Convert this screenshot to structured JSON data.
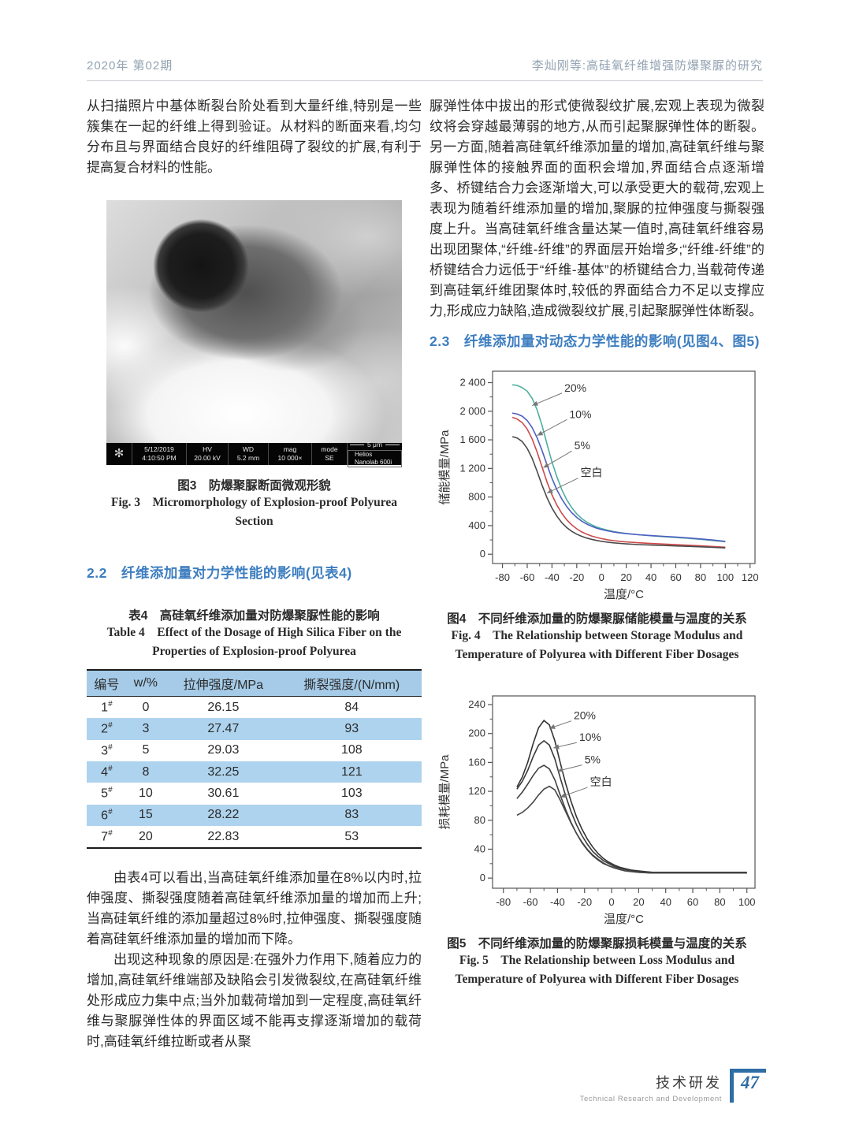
{
  "page": {
    "header_left": "2020年  第02期",
    "header_right": "李灿刚等:高硅氧纤维增强防爆聚脲的研究",
    "footer": {
      "cn": "技术研发",
      "en": "Technical Research and Development",
      "page_number": "47"
    }
  },
  "left_column": {
    "para1": "从扫描照片中基体断裂台阶处看到大量纤维,特别是一些簇集在一起的纤维上得到验证。从材料的断面来看,均匀分布且与界面结合良好的纤维阻碍了裂纹的扩展,有利于提高复合材料的性能。",
    "figure3": {
      "sem_bar": {
        "logo_icon": "✻",
        "cells": [
          {
            "l1": "5/12/2019",
            "l2": "4:10:50 PM"
          },
          {
            "l1": "HV",
            "l2": "20.00 kV"
          },
          {
            "l1": "WD",
            "l2": "5.2 mm"
          },
          {
            "l1": "mag",
            "l2": "10 000×"
          },
          {
            "l1": "mode",
            "l2": "SE"
          }
        ],
        "scale": "5 μm",
        "instrument": "Helios Nanolab 600i"
      },
      "caption_cn": "图3　防爆聚脲断面微观形貌",
      "caption_en1": "Fig. 3　Micromorphology of Explosion-proof Polyurea",
      "caption_en2": "Section"
    },
    "section22": "2.2　纤维添加量对力学性能的影响(见表4)",
    "table4": {
      "caption_cn": "表4　高硅氧纤维添加量对防爆聚脲性能的影响",
      "caption_en1": "Table 4　Effect of the Dosage of High Silica Fiber on the",
      "caption_en2": "Properties of Explosion-proof Polyurea",
      "headers": [
        "编号",
        "w/%",
        "拉伸强度/MPa",
        "撕裂强度/(N/mm)"
      ],
      "rows": [
        [
          "1#",
          "0",
          "26.15",
          "84"
        ],
        [
          "2#",
          "3",
          "27.47",
          "93"
        ],
        [
          "3#",
          "5",
          "29.03",
          "108"
        ],
        [
          "4#",
          "8",
          "32.25",
          "121"
        ],
        [
          "5#",
          "10",
          "30.61",
          "103"
        ],
        [
          "6#",
          "15",
          "28.22",
          "83"
        ],
        [
          "7#",
          "20",
          "22.83",
          "53"
        ]
      ]
    },
    "para2": "由表4可以看出,当高硅氧纤维添加量在8%以内时,拉伸强度、撕裂强度随着高硅氧纤维添加量的增加而上升;当高硅氧纤维的添加量超过8%时,拉伸强度、撕裂强度随着高硅氧纤维添加量的增加而下降。",
    "para3": "出现这种现象的原因是:在强外力作用下,随着应力的增加,高硅氧纤维端部及缺陷会引发微裂纹,在高硅氧纤维处形成应力集中点;当外加载荷增加到一定程度,高硅氧纤维与聚脲弹性体的界面区域不能再支撑逐渐增加的载荷时,高硅氧纤维拉断或者从聚"
  },
  "right_column": {
    "para1": "脲弹性体中拔出的形式使微裂纹扩展,宏观上表现为微裂纹将会穿越最薄弱的地方,从而引起聚脲弹性体的断裂。另一方面,随着高硅氧纤维添加量的增加,高硅氧纤维与聚脲弹性体的接触界面的面积会增加,界面结合点逐渐增多、桥键结合力会逐渐增大,可以承受更大的载荷,宏观上表现为随着纤维添加量的增加,聚脲的拉伸强度与撕裂强度上升。当高硅氧纤维含量达某一值时,高硅氧纤维容易出现团聚体,“纤维-纤维”的界面层开始增多;“纤维-纤维”的桥键结合力远低于“纤维-基体”的桥键结合力,当载荷传递到高硅氧纤维团聚体时,较低的界面结合力不足以支撑应力,形成应力缺陷,造成微裂纹扩展,引起聚脲弹性体断裂。",
    "section23": "2.3　纤维添加量对动态力学性能的影响(见图4、图5)",
    "figure4": {
      "caption_cn": "图4　不同纤维添加量的防爆聚脲储能模量与温度的关系",
      "caption_en1": "Fig. 4　The Relationship between Storage Modulus and",
      "caption_en2": "Temperature of Polyurea with Different Fiber Dosages"
    },
    "figure5": {
      "caption_cn": "图5　不同纤维添加量的防爆聚脲损耗模量与温度的关系",
      "caption_en1": "Fig. 5　The Relationship between Loss Modulus and",
      "caption_en2": "Temperature of Polyurea with Different Fiber Dosages"
    }
  },
  "chart_data": [
    {
      "type": "line",
      "title": "图4 不同纤维添加量的防爆聚脲储能模量与温度的关系",
      "xlabel": "温度/°C",
      "ylabel": "储能模量/MPa",
      "xlim": [
        -88,
        124
      ],
      "ylim": [
        -130,
        2560
      ],
      "xticks": [
        -80,
        -60,
        -40,
        -20,
        0,
        20,
        40,
        60,
        80,
        100,
        120
      ],
      "yticks": [
        0,
        400,
        800,
        1200,
        1600,
        2000,
        2400
      ],
      "ytick_labels": [
        "0",
        "400",
        "800",
        "1 200",
        "1 600",
        "2 000",
        "2 400"
      ],
      "xtick_minor": 10,
      "ytick_minor": 200,
      "x": [
        -72,
        -68,
        -64,
        -60,
        -56,
        -52,
        -48,
        -44,
        -40,
        -36,
        -32,
        -28,
        -24,
        -20,
        -16,
        -12,
        -8,
        -4,
        0,
        5,
        10,
        15,
        20,
        30,
        40,
        50,
        60,
        70,
        80,
        90,
        100
      ],
      "series": [
        {
          "name": "20%",
          "color": "#4fae9f",
          "values": [
            2370,
            2360,
            2330,
            2280,
            2180,
            2020,
            1800,
            1540,
            1290,
            1080,
            900,
            760,
            650,
            565,
            500,
            450,
            412,
            382,
            358,
            335,
            316,
            302,
            290,
            272,
            258,
            246,
            235,
            222,
            208,
            192,
            175
          ]
        },
        {
          "name": "10%",
          "color": "#4d5fc0",
          "values": [
            1975,
            1960,
            1930,
            1870,
            1770,
            1630,
            1450,
            1250,
            1060,
            900,
            770,
            665,
            580,
            515,
            463,
            422,
            390,
            365,
            345,
            326,
            310,
            298,
            288,
            272,
            260,
            250,
            240,
            228,
            214,
            198,
            180
          ]
        },
        {
          "name": "5%",
          "color": "#cc4a4a",
          "values": [
            1915,
            1890,
            1840,
            1750,
            1610,
            1430,
            1220,
            1010,
            830,
            685,
            570,
            480,
            410,
            355,
            312,
            280,
            255,
            235,
            218,
            202,
            190,
            180,
            172,
            160,
            150,
            142,
            134,
            126,
            118,
            108,
            98
          ]
        },
        {
          "name": "空白",
          "color": "#4a4a4a",
          "values": [
            1645,
            1625,
            1575,
            1480,
            1340,
            1160,
            965,
            790,
            645,
            530,
            440,
            372,
            320,
            280,
            250,
            226,
            208,
            193,
            181,
            169,
            159,
            151,
            145,
            135,
            128,
            122,
            116,
            110,
            104,
            96,
            88
          ]
        }
      ],
      "annotations": [
        {
          "label": "20%",
          "tx": -30,
          "ty": 2320,
          "ax": -56,
          "ay": 2080
        },
        {
          "label": "10%",
          "tx": -26,
          "ty": 1950,
          "ax": -52,
          "ay": 1660
        },
        {
          "label": "5%",
          "tx": -22,
          "ty": 1510,
          "ax": -47,
          "ay": 1210
        },
        {
          "label": "空白",
          "tx": -17,
          "ty": 1130,
          "ax": -44,
          "ay": 855
        }
      ]
    },
    {
      "type": "line",
      "title": "图5 不同纤维添加量的防爆聚脲损耗模量与温度的关系",
      "xlabel": "温度/°C",
      "ylabel": "损耗模量/MPa",
      "xlim": [
        -88,
        106
      ],
      "ylim": [
        -14,
        252
      ],
      "xticks": [
        -80,
        -60,
        -40,
        -20,
        0,
        20,
        40,
        60,
        80,
        100
      ],
      "yticks": [
        0,
        40,
        80,
        120,
        160,
        200,
        240
      ],
      "ytick_labels": [
        "0",
        "40",
        "80",
        "120",
        "160",
        "200",
        "240"
      ],
      "xtick_minor": 10,
      "ytick_minor": 20,
      "x": [
        -70,
        -66,
        -62,
        -58,
        -54,
        -50,
        -46,
        -42,
        -38,
        -34,
        -30,
        -26,
        -22,
        -18,
        -14,
        -10,
        -6,
        -2,
        2,
        6,
        10,
        15,
        20,
        30,
        40,
        50,
        60,
        70,
        80,
        90,
        100
      ],
      "series": [
        {
          "name": "20%",
          "color": "#333333",
          "values": [
            126,
            140,
            160,
            186,
            208,
            218,
            212,
            190,
            160,
            131,
            106,
            85,
            68,
            54,
            43,
            34,
            27,
            22,
            18,
            15,
            13,
            11,
            10,
            8,
            8,
            8,
            8,
            8,
            8,
            8,
            8
          ]
        },
        {
          "name": "10%",
          "color": "#3a3a3a",
          "values": [
            123,
            134,
            149,
            168,
            184,
            190,
            184,
            165,
            139,
            114,
            92,
            74,
            59,
            47,
            37,
            30,
            24,
            20,
            16,
            14,
            12,
            10,
            9,
            8,
            7,
            7,
            7,
            7,
            7,
            7,
            7
          ]
        },
        {
          "name": "5%",
          "color": "#404040",
          "values": [
            110,
            119,
            130,
            142,
            152,
            156,
            151,
            136,
            115,
            95,
            77,
            62,
            49,
            39,
            31,
            25,
            20,
            17,
            14,
            12,
            10,
            9,
            8,
            7,
            7,
            7,
            7,
            7,
            7,
            7,
            7
          ]
        },
        {
          "name": "空白",
          "color": "#474747",
          "values": [
            87,
            91,
            97,
            105,
            115,
            123,
            127,
            122,
            108,
            92,
            76,
            62,
            50,
            40,
            32,
            26,
            21,
            17,
            14,
            12,
            10,
            9,
            8,
            7,
            7,
            7,
            7,
            7,
            7,
            7,
            7
          ]
        }
      ],
      "annotations": [
        {
          "label": "20%",
          "tx": -28,
          "ty": 224,
          "ax": -46,
          "ay": 207
        },
        {
          "label": "10%",
          "tx": -24,
          "ty": 194,
          "ax": -43,
          "ay": 180
        },
        {
          "label": "5%",
          "tx": -20,
          "ty": 163,
          "ax": -40,
          "ay": 148
        },
        {
          "label": "空白",
          "tx": -16,
          "ty": 132,
          "ax": -38,
          "ay": 112
        }
      ]
    }
  ]
}
